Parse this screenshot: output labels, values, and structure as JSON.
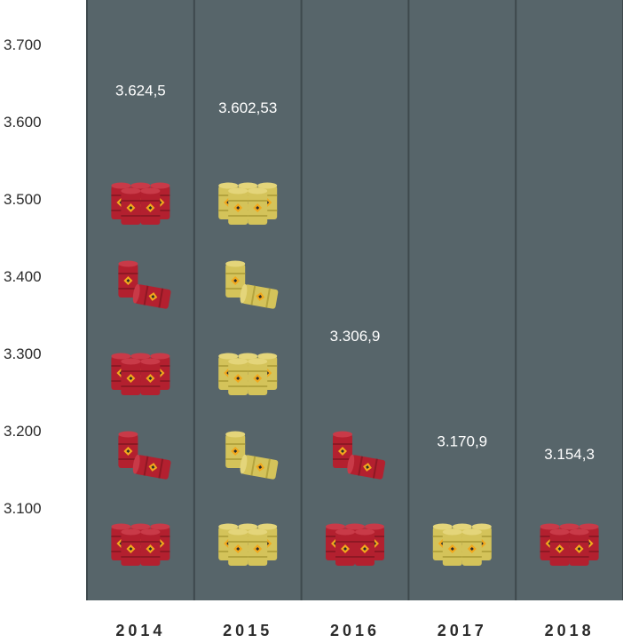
{
  "chart_data": {
    "type": "bar",
    "categories": [
      "2014",
      "2015",
      "2016",
      "2017",
      "2018"
    ],
    "values": [
      3624.5,
      3602.53,
      3306.9,
      3170.9,
      3154.3
    ],
    "value_labels": [
      "3.624,5",
      "3.602,53",
      "3.306,9",
      "3.170,9",
      "3.154,3"
    ],
    "y_ticks": [
      3100,
      3200,
      3300,
      3400,
      3500,
      3600,
      3700
    ],
    "y_tick_labels": [
      "3.100",
      "3.200",
      "3.300",
      "3.400",
      "3.500",
      "3.600",
      "3.700"
    ],
    "ylim": [
      3000,
      3750
    ],
    "colors": {
      "background": "#57656a",
      "divider": "#3e494d",
      "red_barrel": "#b3202f",
      "yellow_barrel": "#d4c35a",
      "drop_icon": "#f2a81d"
    },
    "bar_style": [
      "red-barrels",
      "yellow-barrels",
      "red-barrels",
      "yellow-barrels",
      "red-barrels"
    ],
    "title": "",
    "xlabel": "",
    "ylabel": ""
  }
}
